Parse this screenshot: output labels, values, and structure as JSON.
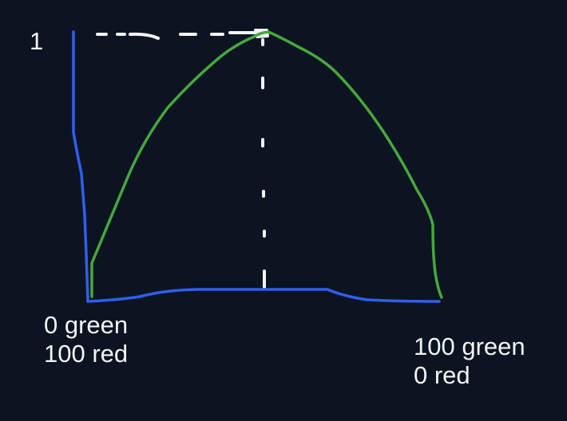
{
  "labels": {
    "y_max": "1",
    "left_line1": "0 green",
    "left_line2": "100 red",
    "right_line1": "100 green",
    "right_line2": "0 red"
  },
  "colors": {
    "background": "#0c1421",
    "axis": "#2f5ef0",
    "curve": "#46a83c",
    "guide": "#f2f4f7",
    "text": "#f2f4f7"
  }
}
